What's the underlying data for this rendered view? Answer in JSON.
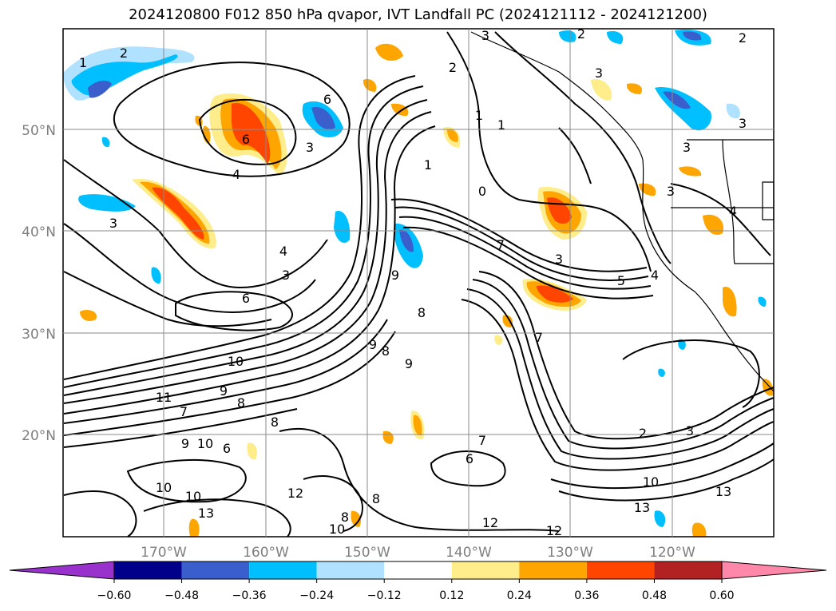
{
  "title": "2024120800 F012 850 hPa qvapor, IVT Landfall PC (2024121112 - 2024121200)",
  "map": {
    "lat_labels": [
      "50°N",
      "40°N",
      "30°N",
      "20°N"
    ],
    "lon_labels": [
      "170°W",
      "160°W",
      "150°W",
      "140°W",
      "130°W",
      "120°W"
    ]
  },
  "colorbar": {
    "ticks": [
      "−0.60",
      "−0.48",
      "−0.36",
      "−0.24",
      "−0.12",
      "0.12",
      "0.24",
      "0.36",
      "0.48",
      "0.60"
    ],
    "colors": [
      "#9932cc",
      "#00008b",
      "#3a5fcd",
      "#00bfff",
      "#b0e2ff",
      "#ffffff",
      "#ffec8b",
      "#ffa500",
      "#ff4500",
      "#b22222",
      "#ff88aa"
    ]
  },
  "contour_labels": [
    "1",
    "2",
    "2",
    "2",
    "3",
    "3",
    "6",
    "2",
    "1",
    "1",
    "3",
    "3",
    "3",
    "3",
    "3",
    "4",
    "4",
    "4",
    "0",
    "6",
    "1",
    "3",
    "5",
    "9",
    "3",
    "7",
    "8",
    "9",
    "9",
    "8",
    "10",
    "11",
    "7",
    "9",
    "8",
    "8",
    "7",
    "9",
    "10",
    "6",
    "10",
    "10",
    "13",
    "12",
    "8",
    "8",
    "10",
    "2",
    "3",
    "10",
    "13",
    "13",
    "12",
    "12",
    "7",
    "6",
    "6",
    "4"
  ]
}
